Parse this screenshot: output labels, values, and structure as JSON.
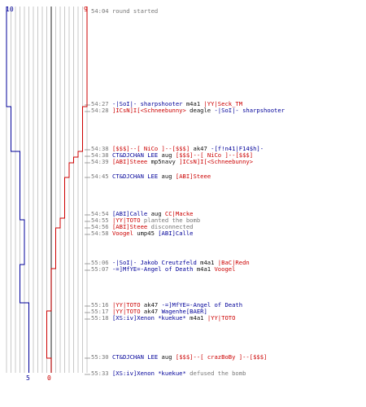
{
  "colors": {
    "red": "#cc0000",
    "blue": "#000099",
    "grid": "#bbbbbb",
    "axis": "#444444",
    "text": "#777777"
  },
  "chart_data": {
    "type": "line",
    "series": [
      {
        "team": "red",
        "start": 9,
        "end": 0
      },
      {
        "team": "blue",
        "start": 10,
        "end": 5
      }
    ]
  },
  "scores": {
    "blue_start": "10",
    "red_start": "9",
    "blue_end": "5",
    "red_end": "0"
  },
  "events": [
    {
      "time": "54:04",
      "parts": [
        {
          "t": "round started",
          "c": "gray"
        }
      ]
    },
    {
      "time": "54:27",
      "parts": [
        {
          "t": "-|SoI|- sharpshooter",
          "c": "blue"
        },
        {
          "t": " m4a1 ",
          "c": "black"
        },
        {
          "t": "|YY|Seck_TM",
          "c": "red"
        }
      ]
    },
    {
      "time": "54:28",
      "parts": [
        {
          "t": "]ICsN]I[<Schneebunny>",
          "c": "red"
        },
        {
          "t": " deagle ",
          "c": "black"
        },
        {
          "t": "-|SoI|- sharpshooter",
          "c": "blue"
        }
      ]
    },
    {
      "time": "54:38",
      "parts": [
        {
          "t": "[$$$]--[ NiCo ]--[$$$]",
          "c": "red"
        },
        {
          "t": " ak47 ",
          "c": "black"
        },
        {
          "t": "-[f!n41|F14$h]-",
          "c": "blue"
        }
      ]
    },
    {
      "time": "54:38",
      "parts": [
        {
          "t": "CT&DJCHAN LEE",
          "c": "blue"
        },
        {
          "t": " aug ",
          "c": "black"
        },
        {
          "t": "[$$$]--[ NiCo ]--[$$$]",
          "c": "red"
        }
      ]
    },
    {
      "time": "54:39",
      "parts": [
        {
          "t": "[ABI]Steee",
          "c": "red"
        },
        {
          "t": " mp5navy ",
          "c": "black"
        },
        {
          "t": "]ICsN]I[<Schneebunny>",
          "c": "red"
        }
      ]
    },
    {
      "time": "54:45",
      "parts": [
        {
          "t": "CT&DJCHAN LEE",
          "c": "blue"
        },
        {
          "t": " aug ",
          "c": "black"
        },
        {
          "t": "[ABI]Steee",
          "c": "red"
        }
      ]
    },
    {
      "time": "54:54",
      "parts": [
        {
          "t": "[ABI]Calle",
          "c": "blue"
        },
        {
          "t": " aug ",
          "c": "black"
        },
        {
          "t": "CC|Macke",
          "c": "red"
        }
      ]
    },
    {
      "time": "54:55",
      "parts": [
        {
          "t": "|YY|TOTO",
          "c": "red"
        },
        {
          "t": " planted the bomb",
          "c": "gray"
        }
      ]
    },
    {
      "time": "54:56",
      "parts": [
        {
          "t": "[ABI]Steee",
          "c": "red"
        },
        {
          "t": " disconnected",
          "c": "gray"
        }
      ]
    },
    {
      "time": "54:58",
      "parts": [
        {
          "t": "Voogel",
          "c": "red"
        },
        {
          "t": " ump45 ",
          "c": "black"
        },
        {
          "t": "[ABI]Calle",
          "c": "blue"
        }
      ]
    },
    {
      "time": "55:06",
      "parts": [
        {
          "t": "-|SoI|- Jakob Creutzfeld",
          "c": "blue"
        },
        {
          "t": " m4a1 ",
          "c": "black"
        },
        {
          "t": "|BaC|Redn",
          "c": "red"
        }
      ]
    },
    {
      "time": "55:07",
      "parts": [
        {
          "t": "-=]MfYE=-Angel of Death",
          "c": "blue"
        },
        {
          "t": " m4a1 ",
          "c": "black"
        },
        {
          "t": "Voogel",
          "c": "red"
        }
      ]
    },
    {
      "time": "55:16",
      "parts": [
        {
          "t": "|YY|TOTO",
          "c": "red"
        },
        {
          "t": " ak47 ",
          "c": "black"
        },
        {
          "t": "-=]MfYE=-Angel of Death",
          "c": "blue"
        }
      ]
    },
    {
      "time": "55:17",
      "parts": [
        {
          "t": "|YY|TOTO",
          "c": "red"
        },
        {
          "t": " ak47 ",
          "c": "black"
        },
        {
          "t": "Wagenhe[BAER]",
          "c": "blue"
        }
      ]
    },
    {
      "time": "55:18",
      "parts": [
        {
          "t": "[XS:iv]Xenon *kuekue*",
          "c": "blue"
        },
        {
          "t": " m4a1 ",
          "c": "black"
        },
        {
          "t": "|YY|TOTO",
          "c": "red"
        }
      ]
    },
    {
      "time": "55:30",
      "parts": [
        {
          "t": "CT&DJCHAN LEE",
          "c": "blue"
        },
        {
          "t": " aug ",
          "c": "black"
        },
        {
          "t": "[$$$]--[ crazBoBy ]--[$$$]",
          "c": "red"
        }
      ]
    },
    {
      "time": "55:33",
      "parts": [
        {
          "t": "[XS:iv]Xenon *kuekue*",
          "c": "blue"
        },
        {
          "t": " defused the bomb",
          "c": "gray"
        }
      ]
    }
  ]
}
